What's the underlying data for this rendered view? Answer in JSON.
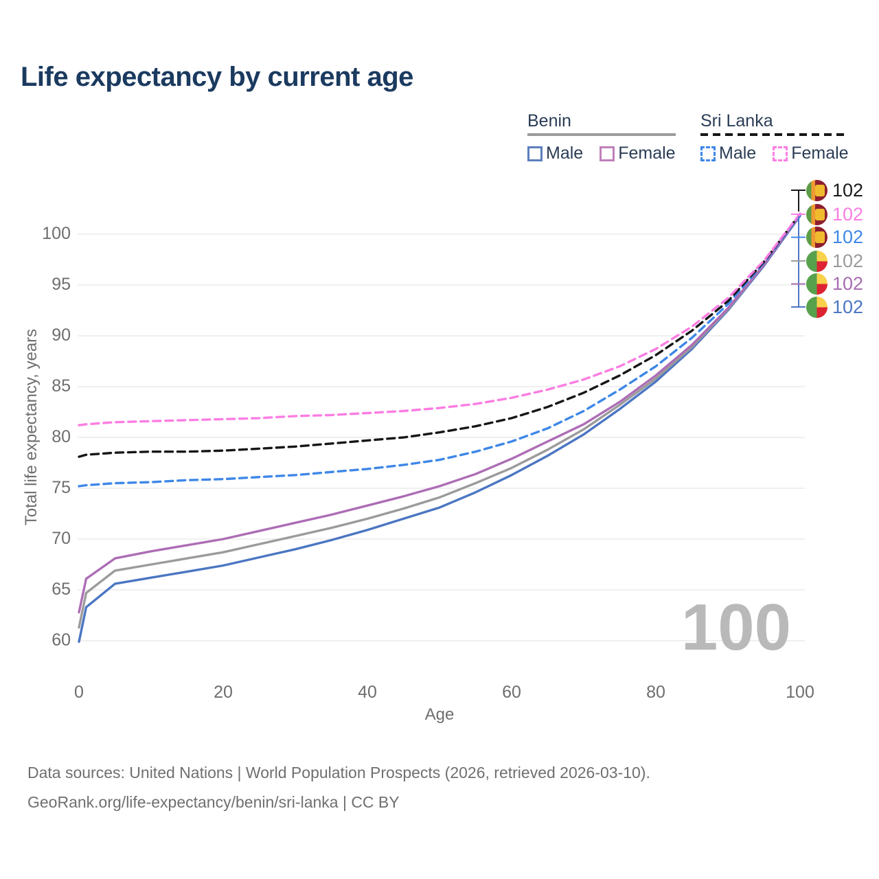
{
  "header": {
    "title": "Life expectancy by current age"
  },
  "legend": {
    "groups": [
      {
        "label": "Benin",
        "underline_style": "solid",
        "underline_color": "#9b9b9b",
        "items": [
          {
            "label": "Male",
            "color": "#5b7fbe",
            "style": "solid"
          },
          {
            "label": "Female",
            "color": "#bf7fba",
            "style": "solid"
          }
        ]
      },
      {
        "label": "Sri Lanka",
        "underline_style": "dashed",
        "underline_color": "#161616",
        "items": [
          {
            "label": "Male",
            "color": "#3e87e8",
            "style": "dashed"
          },
          {
            "label": "Female",
            "color": "#fb7de2",
            "style": "dashed"
          }
        ]
      }
    ]
  },
  "chart_data": {
    "type": "line",
    "title": "Life expectancy by current age",
    "xlabel": "Age",
    "ylabel": "Total life expectancy, years",
    "xlim": [
      0,
      100
    ],
    "ylim": [
      58.5,
      103
    ],
    "x_ticks": [
      0,
      20,
      40,
      60,
      80,
      100
    ],
    "y_ticks": [
      60,
      65,
      70,
      75,
      80,
      85,
      90,
      95,
      100
    ],
    "grid": true,
    "legend_position": "top-right",
    "watermark": "100",
    "x": [
      0,
      1,
      5,
      10,
      15,
      20,
      25,
      30,
      35,
      40,
      45,
      50,
      55,
      60,
      65,
      70,
      75,
      80,
      85,
      90,
      95,
      100
    ],
    "series": [
      {
        "name": "Benin Male",
        "country": "Benin",
        "sex": "Male",
        "color": "#4b76c2",
        "dashed": false,
        "values": [
          59.9,
          63.3,
          65.6,
          66.2,
          66.8,
          67.4,
          68.2,
          69.0,
          69.9,
          70.9,
          72.0,
          73.1,
          74.6,
          76.3,
          78.2,
          80.3,
          82.8,
          85.5,
          88.7,
          92.5,
          96.9,
          101.8
        ]
      },
      {
        "name": "Benin",
        "country": "Benin",
        "sex": "Both",
        "color": "#9b9b9b",
        "dashed": false,
        "values": [
          61.3,
          64.7,
          66.9,
          67.5,
          68.1,
          68.7,
          69.5,
          70.3,
          71.1,
          72.0,
          73.0,
          74.1,
          75.5,
          77.0,
          78.8,
          80.8,
          83.2,
          85.8,
          88.9,
          92.6,
          97.0,
          101.9
        ]
      },
      {
        "name": "Benin Female",
        "country": "Benin",
        "sex": "Female",
        "color": "#ad6db5",
        "dashed": false,
        "values": [
          62.8,
          66.1,
          68.1,
          68.8,
          69.4,
          70.0,
          70.8,
          71.6,
          72.4,
          73.3,
          74.2,
          75.2,
          76.4,
          77.9,
          79.6,
          81.3,
          83.5,
          86.1,
          89.1,
          92.7,
          97.0,
          101.9
        ]
      },
      {
        "name": "Sri Lanka Male",
        "country": "Sri Lanka",
        "sex": "Male",
        "color": "#3e87e8",
        "dashed": true,
        "values": [
          75.2,
          75.3,
          75.5,
          75.6,
          75.8,
          75.9,
          76.1,
          76.3,
          76.6,
          76.9,
          77.3,
          77.8,
          78.6,
          79.6,
          80.9,
          82.6,
          84.7,
          87.0,
          89.8,
          93.1,
          97.2,
          101.9
        ]
      },
      {
        "name": "Sri Lanka",
        "country": "Sri Lanka",
        "sex": "Both",
        "color": "#161616",
        "dashed": true,
        "values": [
          78.1,
          78.3,
          78.5,
          78.6,
          78.6,
          78.7,
          78.9,
          79.1,
          79.4,
          79.7,
          80.0,
          80.5,
          81.1,
          81.9,
          83.0,
          84.4,
          86.1,
          88.1,
          90.5,
          93.4,
          97.3,
          102.0
        ]
      },
      {
        "name": "Sri Lanka Female",
        "country": "Sri Lanka",
        "sex": "Female",
        "color": "#fb7de2",
        "dashed": true,
        "values": [
          81.2,
          81.3,
          81.5,
          81.6,
          81.7,
          81.8,
          81.9,
          82.1,
          82.2,
          82.4,
          82.6,
          82.9,
          83.3,
          83.9,
          84.7,
          85.7,
          87.0,
          88.7,
          90.9,
          93.7,
          97.4,
          102.0
        ]
      }
    ],
    "end_labels": [
      {
        "value": "102",
        "color": "#1a1a1a",
        "icon": "sri-lanka-flag-icon",
        "series": "Sri Lanka"
      },
      {
        "value": "102",
        "color": "#fb7de2",
        "icon": "sri-lanka-flag-icon",
        "series": "Sri Lanka Female"
      },
      {
        "value": "102",
        "color": "#3e87e8",
        "icon": "sri-lanka-flag-icon",
        "series": "Sri Lanka Male"
      },
      {
        "value": "102",
        "color": "#9b9b9b",
        "icon": "benin-flag-icon",
        "series": "Benin"
      },
      {
        "value": "102",
        "color": "#a76db1",
        "icon": "benin-flag-icon",
        "series": "Benin Female"
      },
      {
        "value": "102",
        "color": "#4b76c2",
        "icon": "benin-flag-icon",
        "series": "Benin Male"
      }
    ]
  },
  "footer": {
    "line1": "Data sources: United Nations | World Population Prospects (2026, retrieved 2026-03-10).",
    "line2": "GeoRank.org/life-expectancy/benin/sri-lanka | CC BY"
  }
}
